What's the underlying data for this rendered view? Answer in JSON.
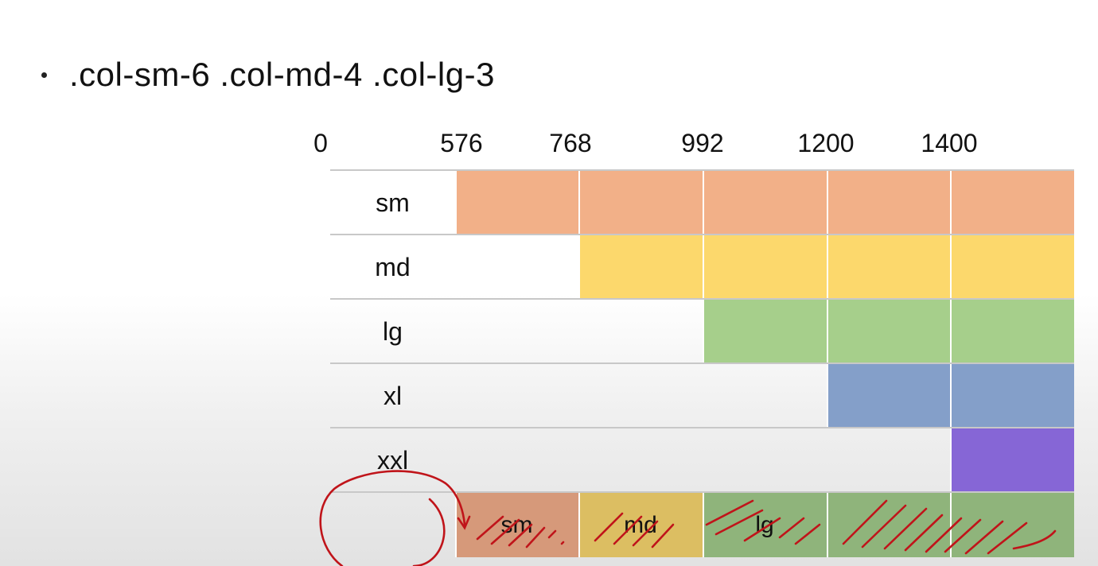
{
  "heading": {
    "text": ".col-sm-6 .col-md-4 .col-lg-3"
  },
  "breakpoints": [
    {
      "label": "0"
    },
    {
      "label": "576"
    },
    {
      "label": "768"
    },
    {
      "label": "992"
    },
    {
      "label": "1200"
    },
    {
      "label": "1400"
    }
  ],
  "colors": {
    "sm": "#f2b088",
    "md": "#fcd86c",
    "lg": "#a6cf8b",
    "xl": "#849fc9",
    "xxl": "#8666d6",
    "result_sm": "#d6997a",
    "result_md": "#dcbe62",
    "result_lg": "#8fb47b",
    "annotation": "#c0141a"
  },
  "rows": [
    {
      "label": "sm",
      "start_breakpoint": 1,
      "color": "#f2b088"
    },
    {
      "label": "md",
      "start_breakpoint": 2,
      "color": "#fcd86c"
    },
    {
      "label": "lg",
      "start_breakpoint": 3,
      "color": "#a6cf8b"
    },
    {
      "label": "xl",
      "start_breakpoint": 4,
      "color": "#849fc9"
    },
    {
      "label": "xxl",
      "start_breakpoint": 5,
      "color": "#8666d6"
    }
  ],
  "result_row": {
    "segments": [
      {
        "label": "sm",
        "color": "#d6997a",
        "from_breakpoint": 1,
        "to_breakpoint": 2
      },
      {
        "label": "md",
        "color": "#dcbe62",
        "from_breakpoint": 2,
        "to_breakpoint": 3
      },
      {
        "label": "lg",
        "color": "#8fb47b",
        "from_breakpoint": 3,
        "to_breakpoint": 6
      }
    ]
  }
}
